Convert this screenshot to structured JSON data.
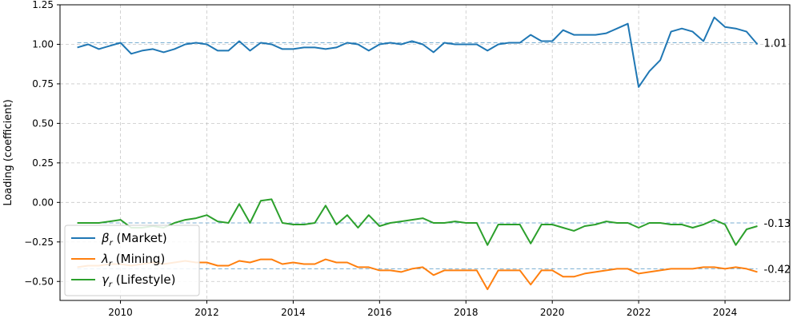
{
  "chart_data": {
    "type": "line",
    "title": "",
    "xlabel": "",
    "ylabel": "Loading (coefficient)",
    "xlim": [
      2008.6,
      2025.5
    ],
    "ylim": [
      -0.62,
      1.25
    ],
    "xticks": [
      2010,
      2012,
      2014,
      2016,
      2018,
      2020,
      2022,
      2024
    ],
    "xtick_labels": [
      "2010",
      "2012",
      "2014",
      "2016",
      "2018",
      "2020",
      "2022",
      "2024"
    ],
    "yticks": [
      -0.5,
      -0.25,
      0.0,
      0.25,
      0.5,
      0.75,
      1.0,
      1.25
    ],
    "ytick_labels": [
      "−0.50",
      "−0.25",
      "0.00",
      "0.25",
      "0.50",
      "0.75",
      "1.00",
      "1.25"
    ],
    "grid": true,
    "legend_position": "bottom-left",
    "x": [
      2009.0,
      2009.25,
      2009.5,
      2009.75,
      2010.0,
      2010.25,
      2010.5,
      2010.75,
      2011.0,
      2011.25,
      2011.5,
      2011.75,
      2012.0,
      2012.25,
      2012.5,
      2012.75,
      2013.0,
      2013.25,
      2013.5,
      2013.75,
      2014.0,
      2014.25,
      2014.5,
      2014.75,
      2015.0,
      2015.25,
      2015.5,
      2015.75,
      2016.0,
      2016.25,
      2016.5,
      2016.75,
      2017.0,
      2017.25,
      2017.5,
      2017.75,
      2018.0,
      2018.25,
      2018.5,
      2018.75,
      2019.0,
      2019.25,
      2019.5,
      2019.75,
      2020.0,
      2020.25,
      2020.5,
      2020.75,
      2021.0,
      2021.25,
      2021.5,
      2021.75,
      2022.0,
      2022.25,
      2022.5,
      2022.75,
      2023.0,
      2023.25,
      2023.5,
      2023.75,
      2024.0,
      2024.25,
      2024.5,
      2024.75
    ],
    "series": [
      {
        "name": "β",
        "name_sub": "r",
        "name_suffix": " (Market)",
        "color": "#1f77b4",
        "reference": 1.01,
        "reference_label": "1.01",
        "values": [
          0.98,
          1.0,
          0.97,
          0.99,
          1.01,
          0.94,
          0.96,
          0.97,
          0.95,
          0.97,
          1.0,
          1.01,
          1.0,
          0.96,
          0.96,
          1.02,
          0.96,
          1.01,
          1.0,
          0.97,
          0.97,
          0.98,
          0.98,
          0.97,
          0.98,
          1.01,
          1.0,
          0.96,
          1.0,
          1.01,
          1.0,
          1.02,
          1.0,
          0.95,
          1.01,
          1.0,
          1.0,
          1.0,
          0.96,
          1.0,
          1.01,
          1.01,
          1.06,
          1.02,
          1.02,
          1.09,
          1.06,
          1.06,
          1.06,
          1.07,
          1.1,
          1.13,
          0.73,
          0.83,
          0.9,
          1.08,
          1.1,
          1.08,
          1.02,
          1.17,
          1.11,
          1.1,
          1.08,
          1.0
        ]
      },
      {
        "name": "λ",
        "name_sub": "r",
        "name_suffix": " (Mining)",
        "color": "#ff7f0e",
        "reference": -0.42,
        "reference_label": "-0.42",
        "values": [
          -0.41,
          -0.4,
          -0.4,
          -0.39,
          -0.39,
          -0.4,
          -0.39,
          -0.38,
          -0.39,
          -0.38,
          -0.37,
          -0.38,
          -0.38,
          -0.4,
          -0.4,
          -0.37,
          -0.38,
          -0.36,
          -0.36,
          -0.39,
          -0.38,
          -0.39,
          -0.39,
          -0.36,
          -0.38,
          -0.38,
          -0.41,
          -0.41,
          -0.43,
          -0.43,
          -0.44,
          -0.42,
          -0.41,
          -0.46,
          -0.43,
          -0.43,
          -0.43,
          -0.43,
          -0.55,
          -0.43,
          -0.43,
          -0.43,
          -0.52,
          -0.43,
          -0.43,
          -0.47,
          -0.47,
          -0.45,
          -0.44,
          -0.43,
          -0.42,
          -0.42,
          -0.45,
          -0.44,
          -0.43,
          -0.42,
          -0.42,
          -0.42,
          -0.41,
          -0.41,
          -0.42,
          -0.41,
          -0.42,
          -0.44
        ]
      },
      {
        "name": "γ",
        "name_sub": "r",
        "name_suffix": " (Lifestyle)",
        "color": "#2ca02c",
        "reference": -0.13,
        "reference_label": "-0.13",
        "values": [
          -0.13,
          -0.13,
          -0.13,
          -0.12,
          -0.11,
          -0.16,
          -0.16,
          -0.15,
          -0.16,
          -0.13,
          -0.11,
          -0.1,
          -0.08,
          -0.12,
          -0.13,
          -0.01,
          -0.13,
          0.01,
          0.02,
          -0.13,
          -0.14,
          -0.14,
          -0.13,
          -0.02,
          -0.14,
          -0.08,
          -0.16,
          -0.08,
          -0.15,
          -0.13,
          -0.12,
          -0.11,
          -0.1,
          -0.13,
          -0.13,
          -0.12,
          -0.13,
          -0.13,
          -0.27,
          -0.14,
          -0.14,
          -0.14,
          -0.26,
          -0.14,
          -0.14,
          -0.16,
          -0.18,
          -0.15,
          -0.14,
          -0.12,
          -0.13,
          -0.13,
          -0.16,
          -0.13,
          -0.13,
          -0.14,
          -0.14,
          -0.16,
          -0.14,
          -0.11,
          -0.14,
          -0.27,
          -0.17,
          -0.15
        ]
      }
    ]
  }
}
